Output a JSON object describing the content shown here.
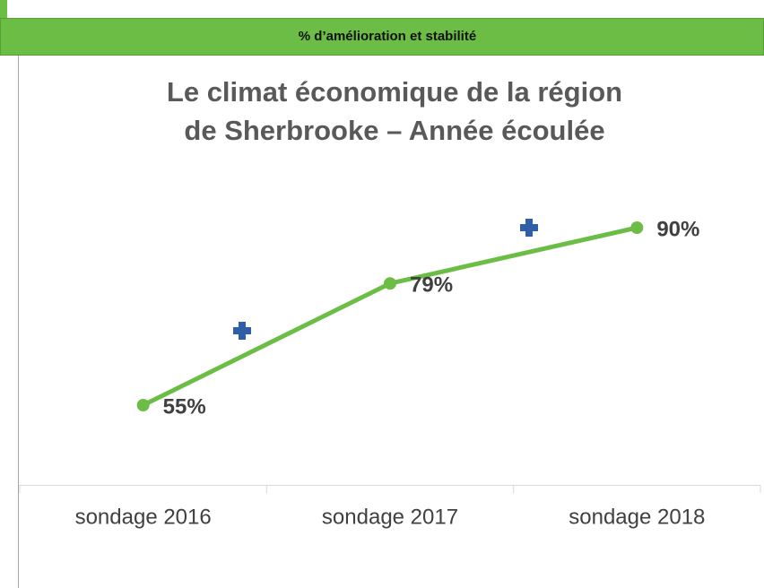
{
  "header": {
    "title": "% d’amélioration et stabilité"
  },
  "chart_data": {
    "type": "line",
    "title": [
      "Le climat économique de la région",
      "de Sherbrooke – Année écoulée"
    ],
    "categories": [
      "sondage 2016",
      "sondage 2017",
      "sondage 2018"
    ],
    "values": [
      55,
      79,
      90
    ],
    "value_labels": [
      "55%",
      "79%",
      "90%"
    ],
    "color": "#6cbd45"
  }
}
